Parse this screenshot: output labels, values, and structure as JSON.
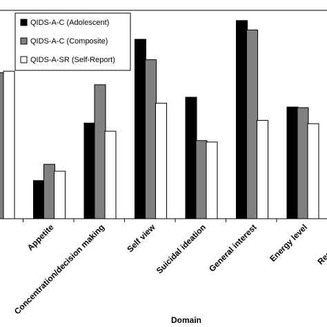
{
  "chart_data": {
    "type": "bar",
    "title": "",
    "xlabel": "Domain",
    "ylabel": "",
    "ylim": [
      0,
      100
    ],
    "grid": false,
    "legend_position": "top-left",
    "categories": [
      "",
      "Appetite",
      "Concentration/decision making",
      "Self view",
      "Suicidal ideation",
      "General interest",
      "Energy level",
      "Restlessness"
    ],
    "series": [
      {
        "name": "QIDS-A-C (Adolescent)",
        "color": "#000000",
        "values": [
          null,
          18.3,
          45.9,
          86.1,
          58.3,
          95.1,
          53.6,
          null
        ]
      },
      {
        "name": "QIDS-A-C (Composite)",
        "color": "#808080",
        "values": [
          70.1,
          26.1,
          64.3,
          76.3,
          37.5,
          90.6,
          53.3,
          null
        ]
      },
      {
        "name": "QIDS-A-SR (Self-Report)",
        "color": "#ffffff",
        "values": [
          70.8,
          22.8,
          42.0,
          55.4,
          36.8,
          47.2,
          45.6,
          null
        ]
      }
    ]
  }
}
